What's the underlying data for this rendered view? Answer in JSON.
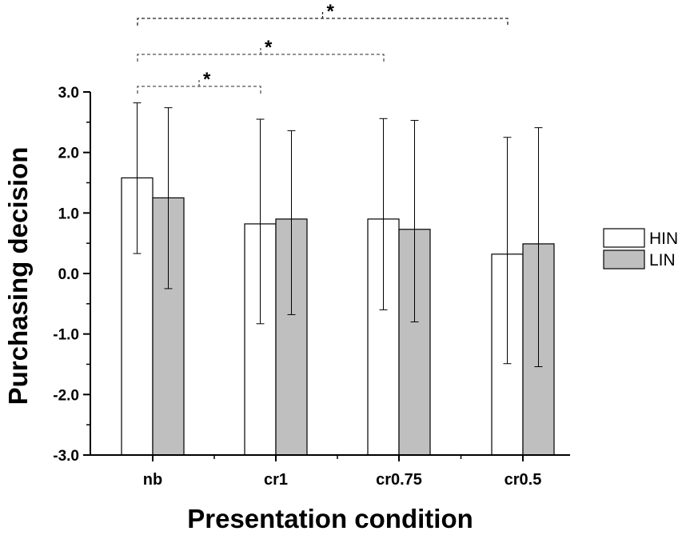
{
  "chart_data": {
    "type": "bar",
    "xlabel": "Presentation condition",
    "ylabel": "Purchasing  decision",
    "ylim": [
      -3.0,
      3.0
    ],
    "yticks": [
      "3.0",
      "2.0",
      "1.0",
      "0.0",
      "-1.0",
      "-2.0",
      "-3.0"
    ],
    "ytick_values": [
      3,
      2,
      1,
      0,
      -1,
      -2,
      -3
    ],
    "categories": [
      "nb",
      "cr1",
      "cr0.75",
      "cr0.5"
    ],
    "series": [
      {
        "name": "HIN",
        "color": "#ffffff",
        "values": [
          1.58,
          0.82,
          0.9,
          0.32
        ],
        "err_upper": [
          2.82,
          2.55,
          2.56,
          2.25
        ],
        "err_lower": [
          0.33,
          -0.83,
          -0.6,
          -1.49
        ]
      },
      {
        "name": "LIN",
        "color": "#bfbfbf",
        "values": [
          1.25,
          0.9,
          0.73,
          0.49
        ],
        "err_upper": [
          2.74,
          2.36,
          2.53,
          2.41
        ],
        "err_lower": [
          -0.25,
          -0.68,
          -0.8,
          -1.54
        ]
      }
    ],
    "legend": "right",
    "grid": false,
    "significance": [
      {
        "from": "nb",
        "to": "cr1",
        "label": "*"
      },
      {
        "from": "nb",
        "to": "cr0.75",
        "label": "*"
      },
      {
        "from": "nb",
        "to": "cr0.5",
        "label": "*"
      }
    ]
  }
}
